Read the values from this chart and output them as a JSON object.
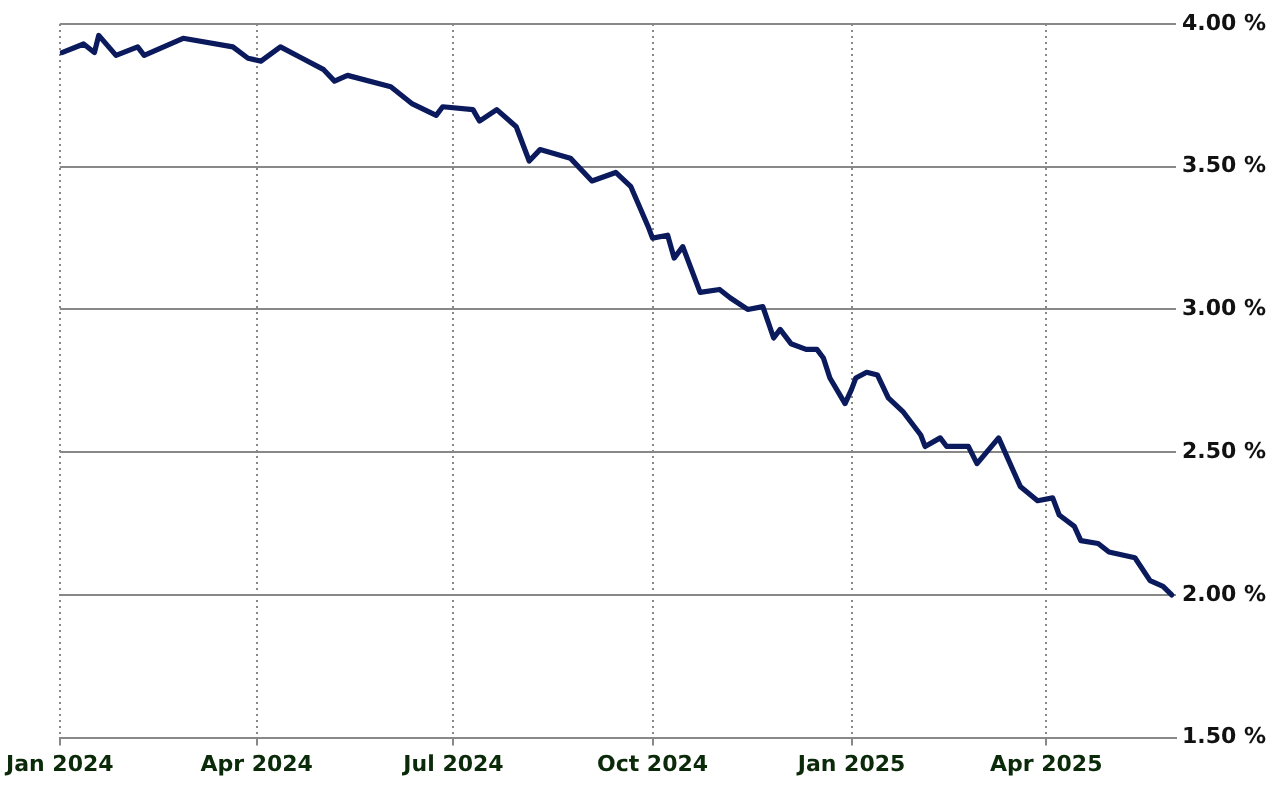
{
  "chart_data": {
    "type": "line",
    "x": [
      "2024-01-02",
      "2024-01-12",
      "2024-01-17",
      "2024-01-19",
      "2024-01-27",
      "2024-02-06",
      "2024-02-09",
      "2024-02-27",
      "2024-03-21",
      "2024-03-28",
      "2024-04-03",
      "2024-04-12",
      "2024-04-22",
      "2024-05-02",
      "2024-05-07",
      "2024-05-13",
      "2024-06-02",
      "2024-06-12",
      "2024-06-23",
      "2024-06-26",
      "2024-07-10",
      "2024-07-13",
      "2024-07-21",
      "2024-07-30",
      "2024-08-05",
      "2024-08-10",
      "2024-08-24",
      "2024-09-03",
      "2024-09-14",
      "2024-09-21",
      "2024-09-29",
      "2024-10-01",
      "2024-10-08",
      "2024-10-11",
      "2024-10-15",
      "2024-10-23",
      "2024-11-01",
      "2024-11-06",
      "2024-11-14",
      "2024-11-21",
      "2024-11-26",
      "2024-11-29",
      "2024-12-04",
      "2024-12-11",
      "2024-12-16",
      "2024-12-19",
      "2024-12-22",
      "2024-12-29",
      "2025-01-01",
      "2025-01-03",
      "2025-01-08",
      "2025-01-13",
      "2025-01-18",
      "2025-01-25",
      "2025-02-02",
      "2025-02-04",
      "2025-02-11",
      "2025-02-14",
      "2025-02-24",
      "2025-02-28",
      "2025-03-10",
      "2025-03-20",
      "2025-03-28",
      "2025-04-04",
      "2025-04-07",
      "2025-04-14",
      "2025-04-17",
      "2025-04-25",
      "2025-04-30",
      "2025-05-12",
      "2025-05-19",
      "2025-05-25",
      "2025-05-29"
    ],
    "series": [
      {
        "color": "#0a1a5c",
        "values": [
          3.9,
          3.93,
          3.9,
          3.96,
          3.89,
          3.92,
          3.89,
          3.95,
          3.92,
          3.88,
          3.87,
          3.92,
          3.88,
          3.84,
          3.8,
          3.82,
          3.78,
          3.72,
          3.68,
          3.71,
          3.7,
          3.66,
          3.7,
          3.64,
          3.52,
          3.56,
          3.53,
          3.45,
          3.48,
          3.43,
          3.29,
          3.25,
          3.26,
          3.18,
          3.22,
          3.06,
          3.07,
          3.04,
          3.0,
          3.01,
          2.9,
          2.93,
          2.88,
          2.86,
          2.86,
          2.83,
          2.76,
          2.67,
          2.72,
          2.76,
          2.78,
          2.77,
          2.69,
          2.64,
          2.56,
          2.52,
          2.55,
          2.52,
          2.52,
          2.46,
          2.55,
          2.38,
          2.33,
          2.34,
          2.28,
          2.24,
          2.19,
          2.18,
          2.15,
          2.13,
          2.05,
          2.03,
          2.0
        ]
      }
    ],
    "xlim": [
      "2024-01-01",
      "2025-05-31"
    ],
    "xticks": [
      {
        "value": "2024-01-01",
        "label": "Jan 2024"
      },
      {
        "value": "2024-04-01",
        "label": "Apr 2024"
      },
      {
        "value": "2024-07-01",
        "label": "Jul 2024"
      },
      {
        "value": "2024-10-01",
        "label": "Oct 2024"
      },
      {
        "value": "2025-01-01",
        "label": "Jan 2025"
      },
      {
        "value": "2025-04-01",
        "label": "Apr 2025"
      }
    ],
    "ylim": [
      1.5,
      4.0
    ],
    "yticks": [
      {
        "value": 1.5,
        "label": "1.50 %"
      },
      {
        "value": 2.0,
        "label": "2.00 %"
      },
      {
        "value": 2.5,
        "label": "2.50 %"
      },
      {
        "value": 3.0,
        "label": "3.00 %"
      },
      {
        "value": 3.5,
        "label": "3.50 %"
      },
      {
        "value": 4.0,
        "label": "4.00 %"
      }
    ],
    "grid": true,
    "marker": "none",
    "line_style": "solid",
    "legend": false
  }
}
